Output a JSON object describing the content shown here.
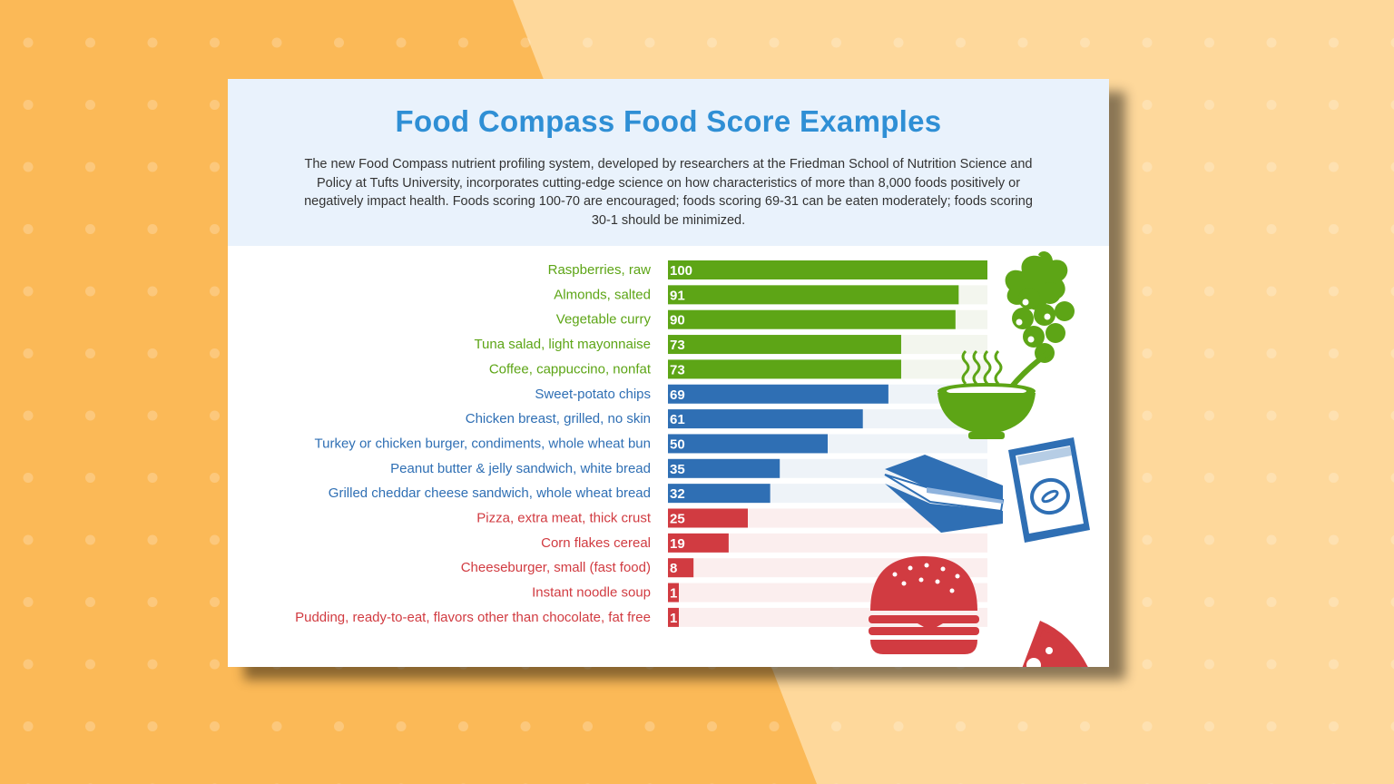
{
  "header": {
    "title": "Food Compass Food Score Examples",
    "description": "The new Food Compass nutrient profiling system, developed by researchers at the Friedman School of Nutrition Science and Policy at Tufts University, incorporates cutting-edge science on how characteristics of more than 8,000 foods positively or negatively impact health. Foods scoring 100-70 are encouraged; foods scoring 69-31 can be eaten moderately;  foods scoring 30-1 should be minimized."
  },
  "colors": {
    "encouraged": "#5da516",
    "moderate": "#2f6fb4",
    "minimized": "#d13b41",
    "title": "#2f8fd5",
    "background_left": "#fbb957",
    "background_right": "#fed89b"
  },
  "icons": [
    "grapes-icon",
    "soup-bowl-icon",
    "chips-bag-icon",
    "sandwich-icon",
    "burger-icon",
    "pizza-slice-icon"
  ],
  "chart_data": {
    "type": "bar",
    "orientation": "horizontal",
    "title": "Food Compass Food Score Examples",
    "xlim": [
      0,
      100
    ],
    "grid": false,
    "categories": [
      "Raspberries, raw",
      "Almonds, salted",
      "Vegetable curry",
      "Tuna salad, light mayonnaise",
      "Coffee, cappuccino, nonfat",
      "Sweet-potato chips",
      "Chicken breast, grilled, no skin",
      "Turkey or chicken burger, condiments, whole wheat bun",
      "Peanut butter & jelly sandwich, white bread",
      "Grilled cheddar cheese sandwich, whole wheat bread",
      "Pizza, extra meat, thick crust",
      "Corn flakes cereal",
      "Cheeseburger, small (fast food)",
      "Instant noodle soup",
      "Pudding, ready-to-eat, flavors other than chocolate, fat free"
    ],
    "values": [
      100,
      91,
      90,
      73,
      73,
      69,
      61,
      50,
      35,
      32,
      25,
      19,
      8,
      1,
      1
    ],
    "value_labels": [
      "100",
      "91",
      "90",
      "73",
      "73",
      "69",
      "61",
      "50",
      "35",
      "32",
      "25",
      "19",
      "8",
      "1",
      "1"
    ],
    "groups": [
      "encouraged",
      "encouraged",
      "encouraged",
      "encouraged",
      "encouraged",
      "moderate",
      "moderate",
      "moderate",
      "moderate",
      "moderate",
      "minimized",
      "minimized",
      "minimized",
      "minimized",
      "minimized"
    ]
  }
}
